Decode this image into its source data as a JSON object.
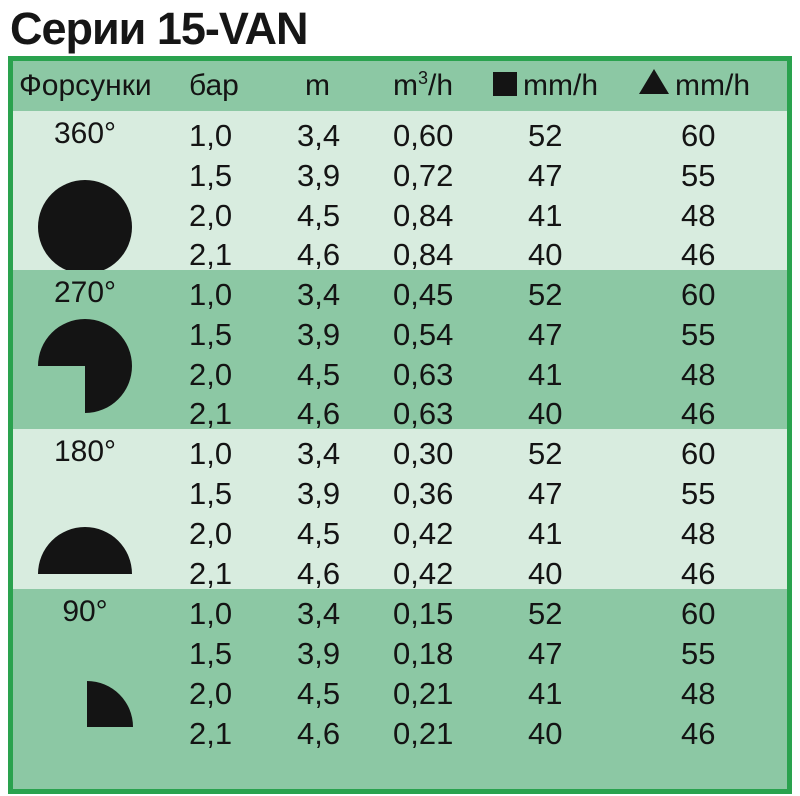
{
  "title": "Серии 15-VAN",
  "header": {
    "nozzle": "Форсунки",
    "bar": "бар",
    "m": "m",
    "flow_base": "m",
    "flow_sup": "3",
    "flow_unit": "/h",
    "square_mmh": "mm/h",
    "triangle_mmh": "mm/h"
  },
  "colors": {
    "border": "#2aa24e",
    "light_row": "#d8ecdf",
    "dark_row": "#8cc8a4",
    "shape": "#141414"
  },
  "groups": [
    {
      "angle": "360°",
      "shape": "full-circle-icon",
      "rows": [
        {
          "bar": "1,0",
          "m": "3,4",
          "flow": "0,60",
          "sq": "52",
          "tri": "60"
        },
        {
          "bar": "1,5",
          "m": "3,9",
          "flow": "0,72",
          "sq": "47",
          "tri": "55"
        },
        {
          "bar": "2,0",
          "m": "4,5",
          "flow": "0,84",
          "sq": "41",
          "tri": "48"
        },
        {
          "bar": "2,1",
          "m": "4,6",
          "flow": "0,84",
          "sq": "40",
          "tri": "46"
        }
      ]
    },
    {
      "angle": "270°",
      "shape": "three-quarter-circle-icon",
      "rows": [
        {
          "bar": "1,0",
          "m": "3,4",
          "flow": "0,45",
          "sq": "52",
          "tri": "60"
        },
        {
          "bar": "1,5",
          "m": "3,9",
          "flow": "0,54",
          "sq": "47",
          "tri": "55"
        },
        {
          "bar": "2,0",
          "m": "4,5",
          "flow": "0,63",
          "sq": "41",
          "tri": "48"
        },
        {
          "bar": "2,1",
          "m": "4,6",
          "flow": "0,63",
          "sq": "40",
          "tri": "46"
        }
      ]
    },
    {
      "angle": "180°",
      "shape": "half-circle-icon",
      "rows": [
        {
          "bar": "1,0",
          "m": "3,4",
          "flow": "0,30",
          "sq": "52",
          "tri": "60"
        },
        {
          "bar": "1,5",
          "m": "3,9",
          "flow": "0,36",
          "sq": "47",
          "tri": "55"
        },
        {
          "bar": "2,0",
          "m": "4,5",
          "flow": "0,42",
          "sq": "41",
          "tri": "48"
        },
        {
          "bar": "2,1",
          "m": "4,6",
          "flow": "0,42",
          "sq": "40",
          "tri": "46"
        }
      ]
    },
    {
      "angle": "90°",
      "shape": "quarter-circle-icon",
      "rows": [
        {
          "bar": "1,0",
          "m": "3,4",
          "flow": "0,15",
          "sq": "52",
          "tri": "60"
        },
        {
          "bar": "1,5",
          "m": "3,9",
          "flow": "0,18",
          "sq": "47",
          "tri": "55"
        },
        {
          "bar": "2,0",
          "m": "4,5",
          "flow": "0,21",
          "sq": "41",
          "tri": "48"
        },
        {
          "bar": "2,1",
          "m": "4,6",
          "flow": "0,21",
          "sq": "40",
          "tri": "46"
        }
      ]
    }
  ]
}
